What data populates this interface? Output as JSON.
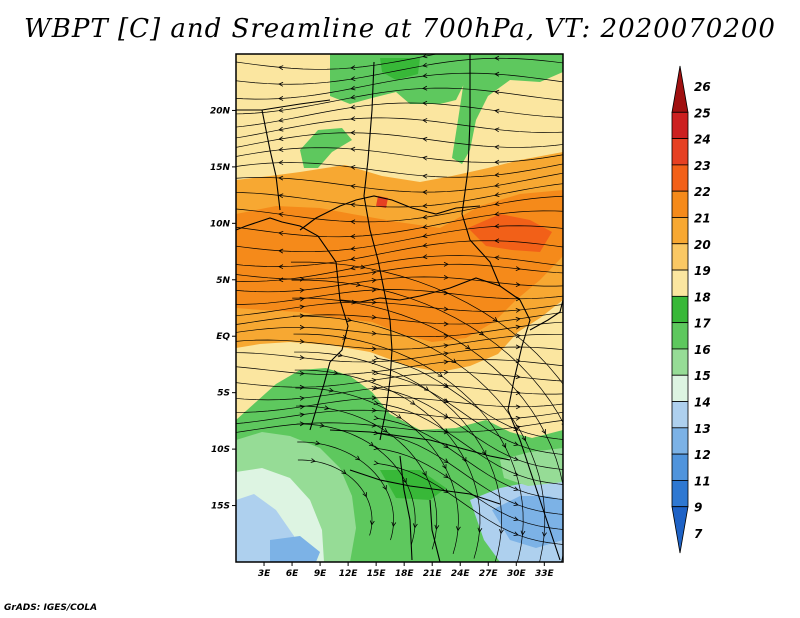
{
  "title": "WBPT [C] and Sreamline at 700hPa, VT: 2020070200",
  "credit": "GrADS: IGES/COLA",
  "map": {
    "lon_range": [
      0,
      35
    ],
    "lat_range": [
      -20,
      25
    ],
    "lat_ticks": [
      {
        "value": 20,
        "label": "20N"
      },
      {
        "value": 15,
        "label": "15N"
      },
      {
        "value": 10,
        "label": "10N"
      },
      {
        "value": 5,
        "label": "5N"
      },
      {
        "value": 0,
        "label": "EQ"
      },
      {
        "value": -5,
        "label": "5S"
      },
      {
        "value": -10,
        "label": "10S"
      },
      {
        "value": -15,
        "label": "15S"
      }
    ],
    "lon_ticks": [
      {
        "value": 3,
        "label": "3E"
      },
      {
        "value": 6,
        "label": "6E"
      },
      {
        "value": 9,
        "label": "9E"
      },
      {
        "value": 12,
        "label": "12E"
      },
      {
        "value": 15,
        "label": "15E"
      },
      {
        "value": 18,
        "label": "18E"
      },
      {
        "value": 21,
        "label": "21E"
      },
      {
        "value": 24,
        "label": "24E"
      },
      {
        "value": 27,
        "label": "27E"
      },
      {
        "value": 30,
        "label": "30E"
      },
      {
        "value": 33,
        "label": "33E"
      }
    ]
  },
  "colorbar": {
    "labels": [
      "26",
      "25",
      "24",
      "23",
      "22",
      "21",
      "20",
      "19",
      "18",
      "17",
      "16",
      "15",
      "14",
      "13",
      "12",
      "11",
      "9",
      "7"
    ],
    "colors": [
      "#a01010",
      "#cc2020",
      "#e64022",
      "#f26018",
      "#f58a1a",
      "#f7a832",
      "#fac864",
      "#fbe6a0",
      "#38b838",
      "#5ec85e",
      "#96dc96",
      "#ddf4e2",
      "#aed0ee",
      "#7cb2e6",
      "#5094dc",
      "#2e78d2",
      "#1e62c6"
    ]
  }
}
